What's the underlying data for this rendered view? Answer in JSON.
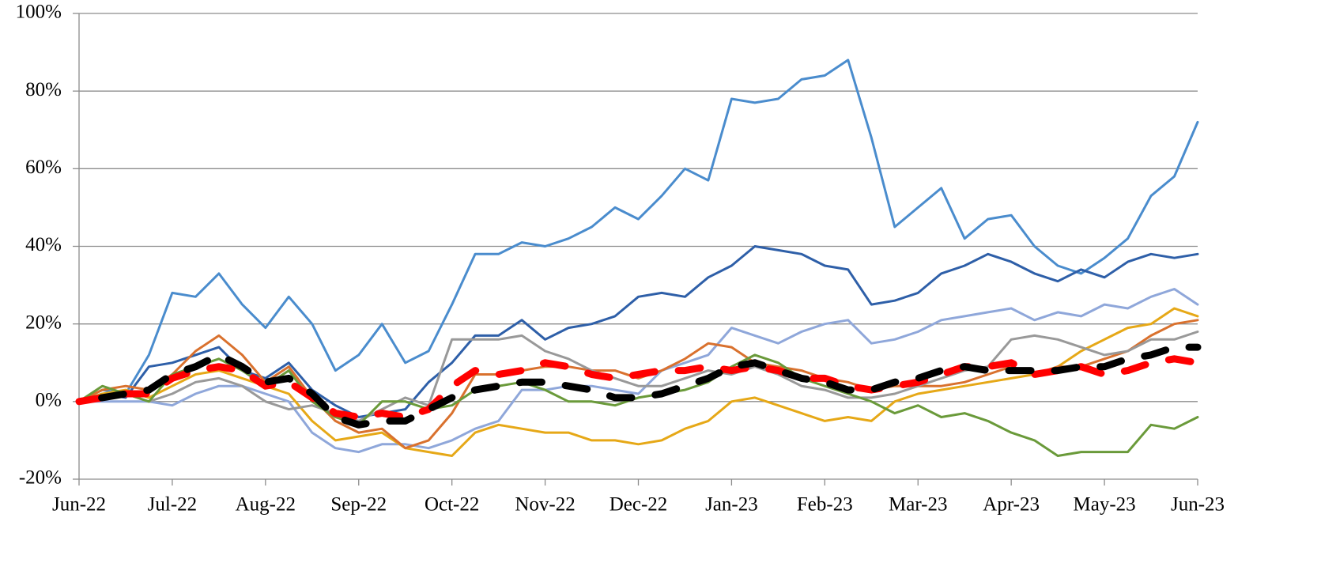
{
  "chart_data": {
    "type": "line",
    "categories": [
      "Jun-22",
      null,
      null,
      null,
      "Jul-22",
      null,
      null,
      null,
      "Aug-22",
      null,
      null,
      null,
      "Sep-22",
      null,
      null,
      null,
      "Oct-22",
      null,
      null,
      null,
      "Nov-22",
      null,
      null,
      null,
      "Dec-22",
      null,
      null,
      null,
      "Jan-23",
      null,
      null,
      null,
      "Feb-23",
      null,
      null,
      null,
      "Mar-23",
      null,
      null,
      null,
      "Apr-23",
      null,
      null,
      null,
      "May-23",
      null,
      null,
      null,
      "Jun-23"
    ],
    "ylim": [
      -20,
      100
    ],
    "yticks": [
      {
        "value": -20,
        "label": "-20%"
      },
      {
        "value": 0,
        "label": "0%"
      },
      {
        "value": 20,
        "label": "20%"
      },
      {
        "value": 40,
        "label": "40%"
      },
      {
        "value": 60,
        "label": "60%"
      },
      {
        "value": 80,
        "label": "80%"
      },
      {
        "value": 100,
        "label": "100%"
      }
    ],
    "grid": true,
    "series": [
      {
        "color": "#4a8ccd",
        "values": [
          0,
          3,
          2,
          12,
          28,
          27,
          33,
          25,
          19,
          27,
          20,
          8,
          12,
          20,
          10,
          13,
          25,
          38,
          38,
          41,
          40,
          42,
          45,
          50,
          47,
          53,
          60,
          57,
          78,
          77,
          78,
          83,
          84,
          88,
          68,
          45,
          50,
          55,
          42,
          47,
          48,
          40,
          35,
          33,
          37,
          42,
          53,
          58,
          72
        ]
      },
      {
        "color": "#2e5fa8",
        "values": [
          0,
          2,
          1,
          9,
          10,
          12,
          14,
          8,
          6,
          10,
          3,
          -1,
          -4,
          -3,
          -2,
          5,
          10,
          17,
          17,
          21,
          16,
          19,
          20,
          22,
          27,
          28,
          27,
          32,
          35,
          40,
          39,
          38,
          35,
          34,
          25,
          26,
          28,
          33,
          35,
          38,
          36,
          33,
          31,
          34,
          32,
          36,
          38,
          37,
          38
        ]
      },
      {
        "color": "#8fa7da",
        "values": [
          0,
          0,
          0,
          0,
          -1,
          2,
          4,
          4,
          2,
          0,
          -8,
          -12,
          -13,
          -11,
          -11,
          -12,
          -10,
          -7,
          -5,
          3,
          3,
          4,
          4,
          3,
          2,
          8,
          10,
          12,
          19,
          17,
          15,
          18,
          20,
          21,
          15,
          16,
          18,
          21,
          22,
          23,
          24,
          21,
          23,
          22,
          25,
          24,
          27,
          29,
          25
        ]
      },
      {
        "color": "#e6a817",
        "values": [
          0,
          2,
          3,
          1,
          4,
          7,
          8,
          6,
          4,
          2,
          -5,
          -10,
          -9,
          -8,
          -12,
          -13,
          -14,
          -8,
          -6,
          -7,
          -8,
          -8,
          -10,
          -10,
          -11,
          -10,
          -7,
          -5,
          0,
          1,
          -1,
          -3,
          -5,
          -4,
          -5,
          0,
          2,
          3,
          4,
          5,
          6,
          7,
          9,
          13,
          16,
          19,
          20,
          24,
          22
        ]
      },
      {
        "color": "#d9712e",
        "values": [
          0,
          3,
          4,
          3,
          7,
          13,
          17,
          12,
          5,
          9,
          1,
          -5,
          -8,
          -7,
          -12,
          -10,
          -3,
          7,
          7,
          8,
          9,
          9,
          8,
          8,
          6,
          8,
          11,
          15,
          14,
          10,
          9,
          8,
          6,
          5,
          3,
          4,
          4,
          4,
          5,
          7,
          9,
          7,
          9,
          9,
          11,
          13,
          17,
          20,
          21
        ]
      },
      {
        "color": "#999999",
        "values": [
          0,
          1,
          2,
          0,
          2,
          5,
          6,
          4,
          0,
          -2,
          -1,
          -3,
          -5,
          -2,
          1,
          -1,
          16,
          16,
          16,
          17,
          13,
          11,
          8,
          6,
          4,
          4,
          6,
          8,
          7,
          9,
          7,
          4,
          3,
          1,
          1,
          2,
          4,
          6,
          8,
          9,
          16,
          17,
          16,
          14,
          12,
          13,
          16,
          16,
          18
        ]
      },
      {
        "color": "#6a9a3a",
        "values": [
          0,
          4,
          2,
          0,
          7,
          9,
          11,
          8,
          4,
          8,
          0,
          -4,
          -6,
          0,
          0,
          -2,
          -1,
          3,
          4,
          5,
          3,
          0,
          0,
          -1,
          1,
          2,
          3,
          5,
          9,
          12,
          10,
          6,
          4,
          2,
          0,
          -3,
          -1,
          -4,
          -3,
          -5,
          -8,
          -10,
          -14,
          -13,
          -13,
          -13,
          -6,
          -7,
          -4
        ]
      },
      {
        "color": "#ff0000",
        "dashed": true,
        "values": [
          0,
          1,
          2,
          2,
          6,
          8,
          9,
          8,
          4,
          5,
          1,
          -3,
          -4,
          -3,
          -4,
          -2,
          4,
          8,
          7,
          8,
          10,
          9,
          7,
          6,
          7,
          8,
          8,
          9,
          8,
          9,
          8,
          6,
          6,
          4,
          3,
          4,
          5,
          7,
          9,
          9,
          10,
          7,
          8,
          9,
          7,
          8,
          10,
          11,
          10
        ]
      },
      {
        "color": "#000000",
        "dashed": true,
        "values": [
          0,
          1,
          2,
          3,
          7,
          9,
          12,
          9,
          5,
          6,
          2,
          -4,
          -6,
          -5,
          -5,
          -2,
          1,
          3,
          4,
          5,
          5,
          4,
          3,
          1,
          1,
          2,
          4,
          6,
          9,
          10,
          8,
          6,
          5,
          3,
          3,
          5,
          6,
          8,
          9,
          8,
          8,
          8,
          8,
          9,
          9,
          11,
          12,
          14,
          14
        ]
      }
    ]
  }
}
